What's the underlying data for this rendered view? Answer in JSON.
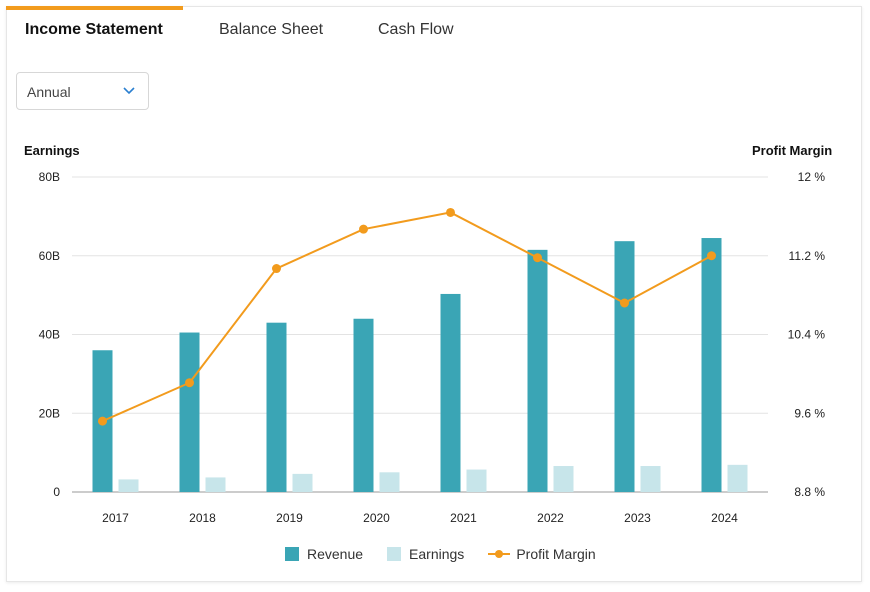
{
  "tabs": [
    {
      "label": "Income Statement",
      "active": true
    },
    {
      "label": "Balance Sheet",
      "active": false
    },
    {
      "label": "Cash Flow",
      "active": false
    }
  ],
  "period_select": {
    "value": "Annual",
    "icon": "chevron-down-icon"
  },
  "colors": {
    "accent": "#f29b1d",
    "revenue": "#3aa5b5",
    "earnings": "#c7e5ea",
    "margin": "#f29b1d",
    "grid": "#e3e3e3"
  },
  "chart_data": {
    "type": "bar",
    "title": "",
    "left_axis_label": "Earnings",
    "right_axis_label": "Profit Margin",
    "categories": [
      "2017",
      "2018",
      "2019",
      "2020",
      "2021",
      "2022",
      "2023",
      "2024"
    ],
    "left_ticks": [
      "0",
      "20B",
      "40B",
      "60B",
      "80B"
    ],
    "right_ticks": [
      "8.8 %",
      "9.6 %",
      "10.4 %",
      "11.2 %",
      "12 %"
    ],
    "ylim_left": [
      0,
      80
    ],
    "ylim_right": [
      8.8,
      12
    ],
    "grid": true,
    "legend_position": "bottom",
    "series": [
      {
        "name": "Revenue",
        "axis": "left",
        "type": "bar",
        "values": [
          36,
          40.5,
          43,
          44,
          50.3,
          61.5,
          63.7,
          64.5
        ]
      },
      {
        "name": "Earnings",
        "axis": "left",
        "type": "bar",
        "values": [
          3.2,
          3.7,
          4.6,
          5,
          5.7,
          6.6,
          6.6,
          6.9
        ]
      },
      {
        "name": "Profit Margin",
        "axis": "right",
        "type": "line",
        "values": [
          9.52,
          9.91,
          11.07,
          11.47,
          11.64,
          11.18,
          10.72,
          11.2
        ]
      }
    ]
  }
}
